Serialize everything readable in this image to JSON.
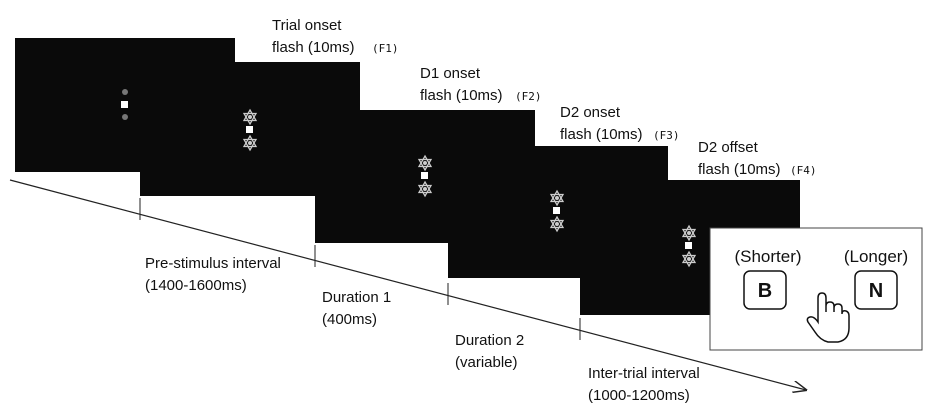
{
  "screens": [
    {
      "label": [
        "Trial onset",
        "flash (10ms)"
      ],
      "code": "(F1)"
    },
    {
      "label": [
        "D1 onset",
        "flash (10ms)"
      ],
      "code": "(F2)"
    },
    {
      "label": [
        "D2 onset",
        "flash (10ms)"
      ],
      "code": "(F3)"
    },
    {
      "label": [
        "D2 offset",
        "flash (10ms)"
      ],
      "code": "(F4)"
    }
  ],
  "intervals": [
    [
      "Pre-stimulus interval",
      "(1400-1600ms)"
    ],
    [
      "Duration 1",
      "(400ms)"
    ],
    [
      "Duration 2",
      "(variable)"
    ],
    [
      "Inter-trial interval",
      "(1000-1200ms)"
    ]
  ],
  "response": {
    "shorter": "(Shorter)",
    "longer": "(Longer)",
    "key_short": "B",
    "key_long": "N"
  }
}
